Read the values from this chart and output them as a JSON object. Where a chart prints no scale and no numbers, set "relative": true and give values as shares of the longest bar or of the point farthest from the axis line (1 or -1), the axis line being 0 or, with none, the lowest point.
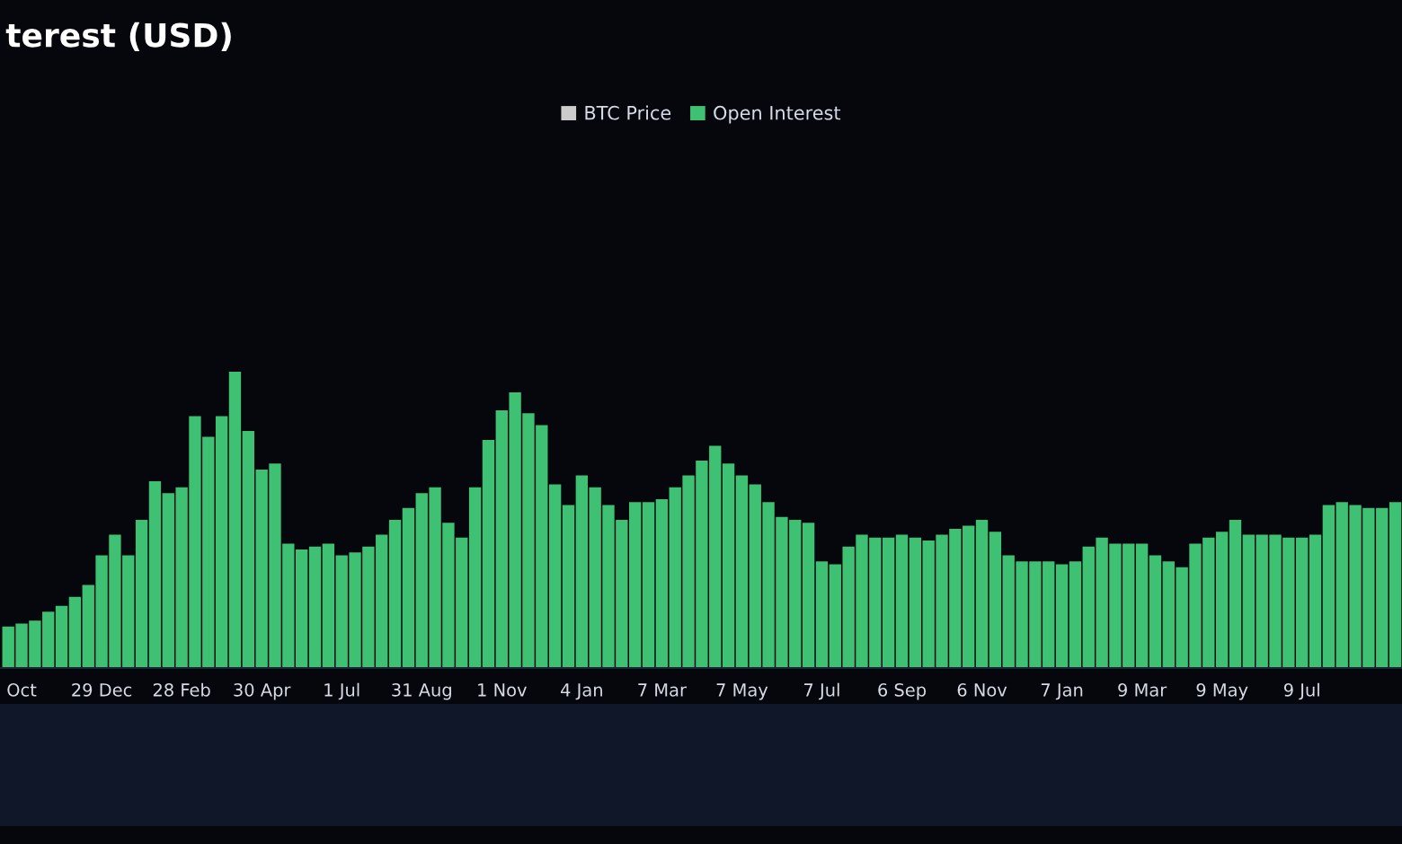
{
  "chart_data": {
    "type": "bar",
    "title": "terest (USD)",
    "relative": true,
    "legend": "top",
    "grid": false,
    "categories": [
      null,
      "Oct",
      null,
      null,
      null,
      null,
      null,
      "29 Dec",
      null,
      null,
      null,
      null,
      null,
      "28 Feb",
      null,
      null,
      null,
      null,
      null,
      "30 Apr",
      null,
      null,
      null,
      null,
      null,
      "1 Jul",
      null,
      null,
      null,
      null,
      null,
      "31 Aug",
      null,
      null,
      null,
      null,
      null,
      "1 Nov",
      null,
      null,
      null,
      null,
      null,
      "4 Jan",
      null,
      null,
      null,
      null,
      null,
      "7 Mar",
      null,
      null,
      null,
      null,
      null,
      "7 May",
      null,
      null,
      null,
      null,
      null,
      "7 Jul",
      null,
      null,
      null,
      null,
      null,
      "6 Sep",
      null,
      null,
      null,
      null,
      null,
      "6 Nov",
      null,
      null,
      null,
      null,
      null,
      "7 Jan",
      null,
      null,
      null,
      null,
      null,
      "9 Mar",
      null,
      null,
      null,
      null,
      null,
      "9 May",
      null,
      null,
      null,
      null,
      null,
      "9 Jul",
      null,
      null,
      null,
      null,
      null,
      null,
      null
    ],
    "series": [
      {
        "name": "BTC Price",
        "color": "#cccccc",
        "values": [
          null,
          null,
          null,
          null,
          null,
          null,
          null,
          null,
          null,
          null,
          null,
          null,
          null,
          null,
          null,
          null,
          null,
          null,
          null,
          null,
          null,
          null,
          null,
          null,
          null,
          null,
          null,
          null,
          null,
          null,
          null,
          null,
          null,
          null,
          null,
          null,
          null,
          null,
          null,
          null,
          null,
          null,
          null,
          null,
          null,
          null,
          null,
          null,
          null,
          null,
          null,
          null,
          null,
          null,
          null,
          null,
          null,
          null,
          null,
          null,
          null,
          null,
          null,
          null,
          null,
          null,
          null,
          null,
          null,
          null,
          null,
          null,
          null,
          null,
          null,
          null,
          null,
          null,
          null,
          null,
          null,
          null,
          null,
          null,
          null,
          null,
          null,
          null,
          null,
          null,
          null,
          null,
          null,
          null,
          null,
          null,
          null,
          null,
          null,
          null,
          null,
          null,
          null,
          null,
          null
        ]
      },
      {
        "name": "Open Interest",
        "color": "#3ec172",
        "values": [
          0.14,
          0.15,
          0.16,
          0.19,
          0.21,
          0.24,
          0.28,
          0.38,
          0.45,
          0.38,
          0.5,
          0.63,
          0.59,
          0.61,
          0.85,
          0.78,
          0.85,
          1.0,
          0.8,
          0.67,
          0.69,
          0.42,
          0.4,
          0.41,
          0.42,
          0.38,
          0.39,
          0.41,
          0.45,
          0.5,
          0.54,
          0.59,
          0.61,
          0.49,
          0.44,
          0.61,
          0.77,
          0.87,
          0.93,
          0.86,
          0.82,
          0.62,
          0.55,
          0.65,
          0.61,
          0.55,
          0.5,
          0.56,
          0.56,
          0.57,
          0.61,
          0.65,
          0.7,
          0.75,
          0.69,
          0.65,
          0.62,
          0.56,
          0.51,
          0.5,
          0.49,
          0.36,
          0.35,
          0.41,
          0.45,
          0.44,
          0.44,
          0.45,
          0.44,
          0.43,
          0.45,
          0.47,
          0.48,
          0.5,
          0.46,
          0.38,
          0.36,
          0.36,
          0.36,
          0.35,
          0.36,
          0.41,
          0.44,
          0.42,
          0.42,
          0.42,
          0.38,
          0.36,
          0.34,
          0.42,
          0.44,
          0.46,
          0.5,
          0.45,
          0.45,
          0.45,
          0.44,
          0.44,
          0.45,
          0.55,
          0.56,
          0.55,
          0.54,
          0.54,
          0.56
        ]
      }
    ]
  }
}
